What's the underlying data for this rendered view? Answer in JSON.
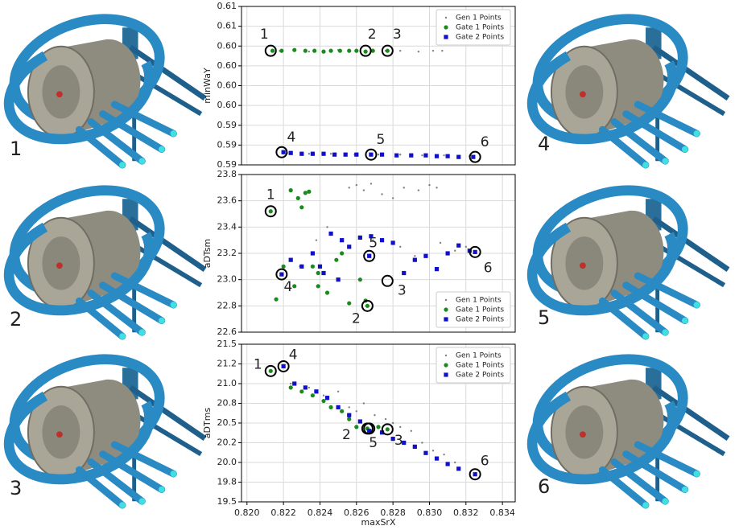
{
  "panel_labels": {
    "left": [
      "1",
      "2",
      "3"
    ],
    "right": [
      "4",
      "5",
      "6"
    ]
  },
  "chart_data": [
    {
      "type": "scatter",
      "ylabel": "minWaY",
      "ylim": [
        0.59,
        0.61
      ],
      "yticks": [
        {
          "value": 0.61,
          "label": "0.61"
        },
        {
          "value": 0.6075,
          "label": "0.61"
        },
        {
          "value": 0.605,
          "label": "0.60"
        },
        {
          "value": 0.6025,
          "label": "0.60"
        },
        {
          "value": 0.6,
          "label": "0.60"
        },
        {
          "value": 0.5975,
          "label": "0.60"
        },
        {
          "value": 0.595,
          "label": "0.59"
        },
        {
          "value": 0.5925,
          "label": "0.59"
        },
        {
          "value": 0.59,
          "label": "0.59"
        }
      ],
      "xlim": [
        0.8197,
        0.8347
      ],
      "grid": true,
      "legend": "upper right",
      "series": [
        {
          "name": "Gen 1 Points",
          "color": "#808080",
          "marker": "point",
          "x": [
            0.8218,
            0.8226,
            0.8234,
            0.8242,
            0.825,
            0.8256,
            0.8269,
            0.8276,
            0.8284,
            0.8294,
            0.8302,
            0.8307,
            0.8222,
            0.8234,
            0.8246,
            0.8259,
            0.8272,
            0.8284,
            0.8296,
            0.8308,
            0.8316,
            0.8322
          ],
          "values": [
            0.6044,
            0.6045,
            0.6043,
            0.6044,
            0.6045,
            0.6044,
            0.6043,
            0.6044,
            0.6044,
            0.6043,
            0.6044,
            0.6044,
            0.5915,
            0.5914,
            0.5914,
            0.5913,
            0.5913,
            0.5913,
            0.5912,
            0.5912,
            0.5911,
            0.5911
          ]
        },
        {
          "name": "Gate 1 Points",
          "color": "#1a8a1a",
          "marker": "circle",
          "x": [
            0.8214,
            0.8219,
            0.8226,
            0.8232,
            0.8237,
            0.8242,
            0.8246,
            0.8251,
            0.8256,
            0.826,
            0.8265,
            0.8269,
            0.8277
          ],
          "values": [
            0.6044,
            0.6044,
            0.6045,
            0.6044,
            0.6044,
            0.6043,
            0.6044,
            0.6044,
            0.6044,
            0.6044,
            0.6043,
            0.6044,
            0.6044
          ]
        },
        {
          "name": "Gate 2 Points",
          "color": "#1010c8",
          "marker": "square",
          "x": [
            0.822,
            0.8224,
            0.823,
            0.8236,
            0.8242,
            0.8248,
            0.8254,
            0.826,
            0.8268,
            0.8274,
            0.8282,
            0.829,
            0.8298,
            0.8304,
            0.831,
            0.8316,
            0.8324
          ],
          "values": [
            0.5916,
            0.5915,
            0.5914,
            0.5914,
            0.5914,
            0.5913,
            0.5913,
            0.5913,
            0.5913,
            0.5913,
            0.5912,
            0.5912,
            0.5912,
            0.5911,
            0.5911,
            0.591,
            0.591
          ]
        }
      ],
      "annotations": [
        {
          "label": "1",
          "x": 0.8213,
          "y": 0.6044
        },
        {
          "label": "2",
          "x": 0.8265,
          "y": 0.6044
        },
        {
          "label": "3",
          "x": 0.8277,
          "y": 0.6044
        },
        {
          "label": "4",
          "x": 0.8219,
          "y": 0.5916
        },
        {
          "label": "5",
          "x": 0.8268,
          "y": 0.5913
        },
        {
          "label": "6",
          "x": 0.8325,
          "y": 0.591
        }
      ]
    },
    {
      "type": "scatter",
      "ylabel": "aDTsm",
      "ylim": [
        22.6,
        23.8
      ],
      "yticks": [
        22.6,
        22.8,
        {
          "value": 23,
          "label": "23.0"
        },
        23.2,
        23.4,
        23.6,
        23.8
      ],
      "xlim": [
        0.8197,
        0.8347
      ],
      "grid": true,
      "legend": "lower right",
      "series": [
        {
          "name": "Gen 1 Points",
          "color": "#808080",
          "marker": "point",
          "x": [
            0.8256,
            0.826,
            0.8264,
            0.8268,
            0.8274,
            0.828,
            0.8286,
            0.8294,
            0.83,
            0.8304,
            0.8244,
            0.8252,
            0.8269,
            0.8284,
            0.8292,
            0.8306,
            0.8314,
            0.832,
            0.8238,
            0.8229
          ],
          "values": [
            23.7,
            23.72,
            23.68,
            23.73,
            23.65,
            23.62,
            23.7,
            23.68,
            23.72,
            23.7,
            23.4,
            23.2,
            23.3,
            23.25,
            23.18,
            23.28,
            23.22,
            23.25,
            23.3,
            23.1
          ]
        },
        {
          "name": "Gate 1 Points",
          "color": "#1a8a1a",
          "marker": "circle",
          "x": [
            0.8213,
            0.8224,
            0.8228,
            0.8232,
            0.8234,
            0.823,
            0.822,
            0.8216,
            0.8226,
            0.8239,
            0.8244,
            0.8249,
            0.8256,
            0.8266,
            0.8265,
            0.8262,
            0.8252,
            0.8239,
            0.8236
          ],
          "values": [
            23.52,
            23.68,
            23.62,
            23.66,
            23.67,
            23.55,
            23.1,
            22.85,
            22.95,
            23.05,
            22.9,
            23.15,
            22.82,
            22.8,
            22.84,
            23.0,
            23.2,
            22.95,
            23.1
          ]
        },
        {
          "name": "Gate 2 Points",
          "color": "#1010c8",
          "marker": "square",
          "x": [
            0.8219,
            0.8224,
            0.823,
            0.8236,
            0.8242,
            0.8246,
            0.8252,
            0.8256,
            0.8262,
            0.8267,
            0.8274,
            0.828,
            0.8286,
            0.8292,
            0.8298,
            0.8304,
            0.831,
            0.8316,
            0.8322,
            0.8325,
            0.824,
            0.825,
            0.8268
          ],
          "values": [
            23.04,
            23.15,
            23.1,
            23.2,
            23.05,
            23.35,
            23.3,
            23.25,
            23.32,
            23.18,
            23.3,
            23.28,
            23.05,
            23.15,
            23.18,
            23.08,
            23.2,
            23.26,
            23.22,
            23.21,
            23.1,
            23.0,
            23.33
          ]
        }
      ],
      "annotations": [
        {
          "label": "1",
          "x": 0.8213,
          "y": 23.52
        },
        {
          "label": "2",
          "x": 0.8266,
          "y": 22.8
        },
        {
          "label": "3",
          "x": 0.8277,
          "y": 22.99
        },
        {
          "label": "4",
          "x": 0.8219,
          "y": 23.04
        },
        {
          "label": "5",
          "x": 0.8267,
          "y": 23.18
        },
        {
          "label": "6",
          "x": 0.8325,
          "y": 23.21
        }
      ]
    },
    {
      "type": "scatter",
      "ylabel": "aDTms",
      "xlabel": "maxSrX",
      "ylim": [
        19.5,
        21.5
      ],
      "yticks": [
        19.5,
        {
          "value": 19.75,
          "label": "19.8"
        },
        {
          "value": 20,
          "label": "20.0"
        },
        {
          "value": 20.25,
          "label": "20.2"
        },
        20.5,
        {
          "value": 20.75,
          "label": "20.8"
        },
        {
          "value": 21,
          "label": "21.0"
        },
        {
          "value": 21.25,
          "label": "21.2"
        },
        21.5
      ],
      "xlim": [
        0.8197,
        0.8347
      ],
      "xticks": [
        {
          "value": 0.82,
          "label": "0.820"
        },
        0.822,
        0.824,
        0.826,
        0.828,
        {
          "value": 0.83,
          "label": "0.830"
        },
        0.832,
        0.834
      ],
      "grid": true,
      "legend": "upper right",
      "series": [
        {
          "name": "Gen 1 Points",
          "color": "#808080",
          "marker": "point",
          "x": [
            0.8224,
            0.8234,
            0.8242,
            0.825,
            0.8256,
            0.8264,
            0.827,
            0.8276,
            0.8284,
            0.829,
            0.8296,
            0.8302,
            0.8308,
            0.8314,
            0.8244,
            0.826,
            0.828
          ],
          "values": [
            21.0,
            20.95,
            20.85,
            20.9,
            20.7,
            20.75,
            20.6,
            20.55,
            20.45,
            20.4,
            20.25,
            20.15,
            20.1,
            20.0,
            20.8,
            20.65,
            20.5
          ]
        },
        {
          "name": "Gate 1 Points",
          "color": "#1a8a1a",
          "marker": "circle",
          "x": [
            0.8213,
            0.8224,
            0.823,
            0.8236,
            0.8242,
            0.8246,
            0.8252,
            0.8256,
            0.826,
            0.8266,
            0.8272,
            0.8277
          ],
          "values": [
            21.16,
            20.95,
            20.9,
            20.85,
            20.78,
            20.7,
            20.65,
            20.55,
            20.45,
            20.43,
            20.45,
            20.42
          ]
        },
        {
          "name": "Gate 2 Points",
          "color": "#1010c8",
          "marker": "square",
          "x": [
            0.822,
            0.8226,
            0.8232,
            0.8238,
            0.8244,
            0.825,
            0.8256,
            0.8262,
            0.8267,
            0.8274,
            0.828,
            0.8286,
            0.8292,
            0.8298,
            0.8304,
            0.831,
            0.8316,
            0.8325
          ],
          "values": [
            21.22,
            21.0,
            20.95,
            20.9,
            20.82,
            20.7,
            20.6,
            20.52,
            20.4,
            20.38,
            20.3,
            20.25,
            20.2,
            20.12,
            20.05,
            19.98,
            19.92,
            19.85
          ]
        }
      ],
      "annotations": [
        {
          "label": "1",
          "x": 0.8213,
          "y": 21.16
        },
        {
          "label": "2",
          "x": 0.8266,
          "y": 20.43
        },
        {
          "label": "3",
          "x": 0.8277,
          "y": 20.42
        },
        {
          "label": "4",
          "x": 0.822,
          "y": 21.22
        },
        {
          "label": "5",
          "x": 0.8267,
          "y": 20.43
        },
        {
          "label": "6",
          "x": 0.8325,
          "y": 19.85
        }
      ]
    }
  ]
}
